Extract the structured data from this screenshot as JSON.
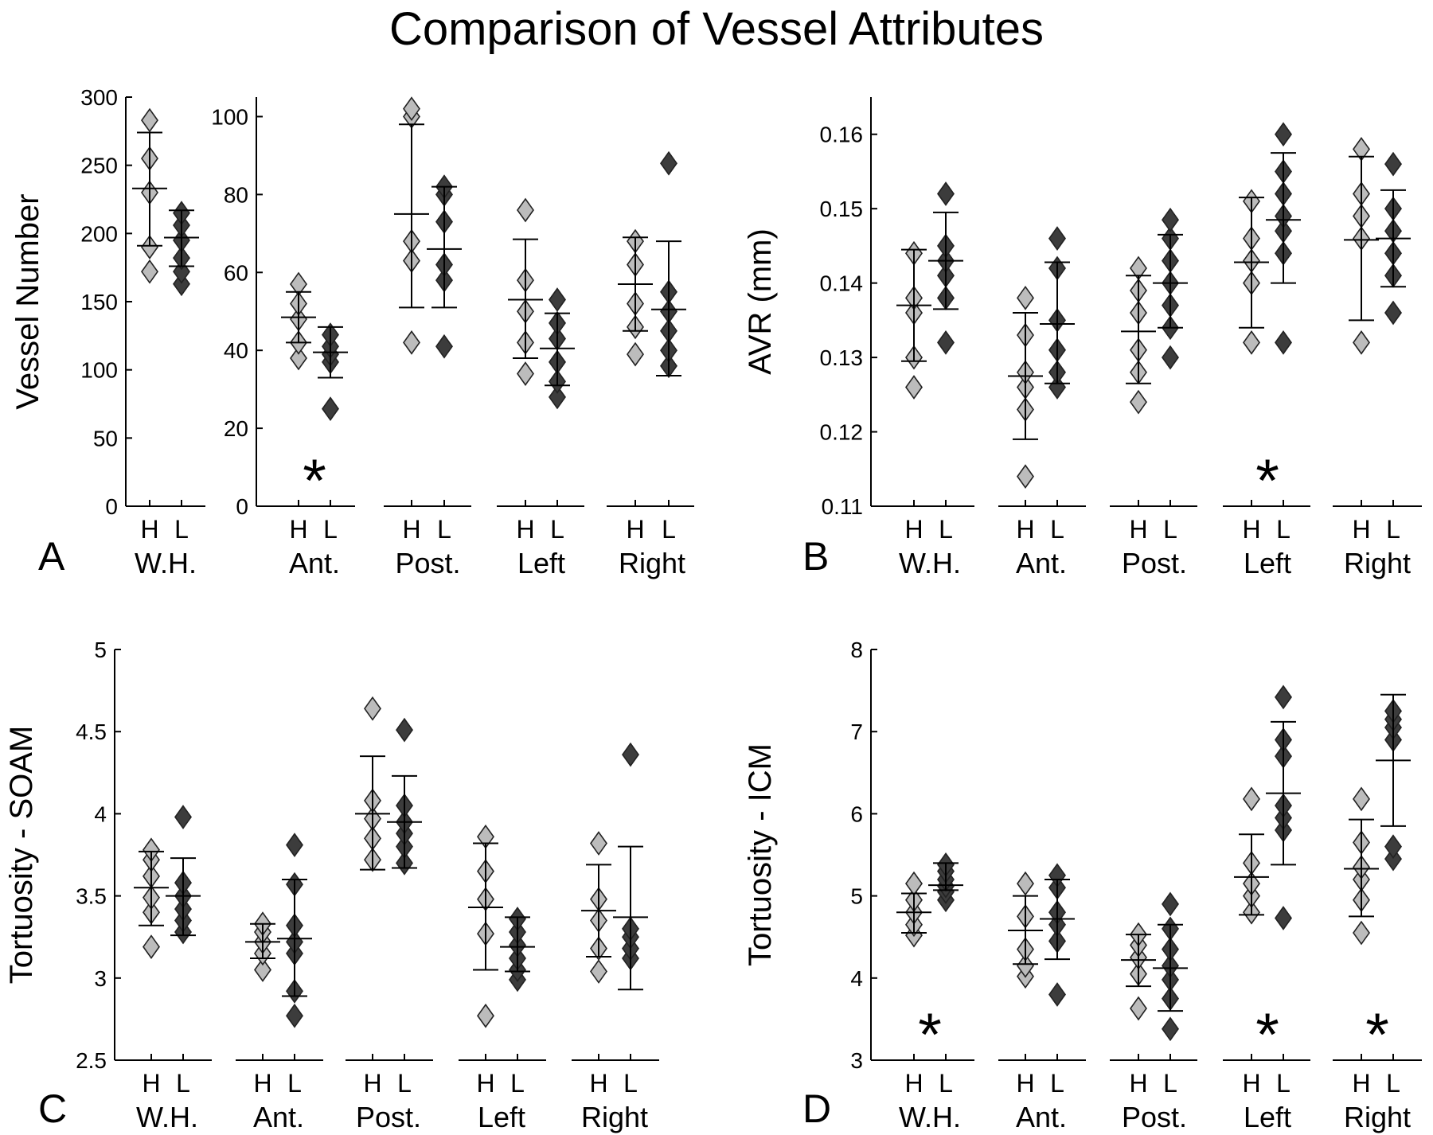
{
  "title": "Comparison of Vessel Attributes",
  "colors": {
    "H": "#bcbcbc",
    "L": "#3c3c3c",
    "marker_edge": "#222222",
    "axis": "#000000"
  },
  "chart_data": [
    {
      "panel": "A",
      "type": "scatter",
      "ylabel": "Vessel Number",
      "series": [
        {
          "name": "H"
        },
        {
          "name": "L"
        }
      ],
      "groups": [
        {
          "label": "W.H.",
          "hl": [
            "H",
            "L"
          ],
          "ylim": [
            0,
            300
          ],
          "yticks": [
            0,
            50,
            100,
            150,
            200,
            250,
            300
          ],
          "ytick_labels": [
            "0",
            "50",
            "100",
            "150",
            "200",
            "250",
            "300"
          ],
          "H": {
            "points": [
              172,
              190,
              230,
              255,
              283
            ],
            "mean": 233,
            "sd_low": 191,
            "sd_high": 274
          },
          "L": {
            "points": [
              163,
              172,
              182,
              195,
              206,
              215
            ],
            "mean": 197,
            "sd_low": 176,
            "sd_high": 217
          },
          "star": false
        },
        {
          "label": "Ant.",
          "hl": [
            "H",
            "L"
          ],
          "ylim": [
            0,
            105
          ],
          "yticks": [
            0,
            20,
            40,
            60,
            80,
            100
          ],
          "ytick_labels": [
            "0",
            "20",
            "40",
            "60",
            "80",
            "100"
          ],
          "H": {
            "points": [
              38,
              42,
              48,
              52,
              57
            ],
            "mean": 48.5,
            "sd_low": 42,
            "sd_high": 55
          },
          "L": {
            "points": [
              25,
              37,
              39,
              41,
              44
            ],
            "mean": 39.5,
            "sd_low": 33,
            "sd_high": 46
          },
          "star": true
        },
        {
          "label": "Post.",
          "hl": [
            "H",
            "L"
          ],
          "H": {
            "points": [
              42,
              63,
              68,
              100,
              102
            ],
            "mean": 75,
            "sd_low": 51,
            "sd_high": 98
          },
          "L": {
            "points": [
              41,
              58,
              62,
              73,
              80,
              82
            ],
            "mean": 66,
            "sd_low": 51,
            "sd_high": 82
          },
          "star": false
        },
        {
          "label": "Left",
          "hl": [
            "H",
            "L"
          ],
          "H": {
            "points": [
              34,
              42,
              50,
              58,
              76
            ],
            "mean": 53,
            "sd_low": 38,
            "sd_high": 68.5
          },
          "L": {
            "points": [
              28,
              32,
              37,
              43,
              47,
              53
            ],
            "mean": 40.5,
            "sd_low": 31,
            "sd_high": 49.5
          },
          "star": false
        },
        {
          "label": "Right",
          "hl": [
            "H",
            "L"
          ],
          "H": {
            "points": [
              39,
              46,
              52,
              62,
              68
            ],
            "mean": 57,
            "sd_low": 45,
            "sd_high": 69
          },
          "L": {
            "points": [
              36,
              40,
              45,
              50,
              55,
              88
            ],
            "mean": 50.5,
            "sd_low": 33.5,
            "sd_high": 68
          },
          "star": false
        }
      ]
    },
    {
      "panel": "B",
      "type": "scatter",
      "ylabel": "AVR (mm)",
      "ylim": [
        0.11,
        0.165
      ],
      "yticks": [
        0.11,
        0.12,
        0.13,
        0.14,
        0.15,
        0.16
      ],
      "ytick_labels": [
        "0.11",
        "0.12",
        "0.13",
        "0.14",
        "0.15",
        "0.16"
      ],
      "series": [
        {
          "name": "H"
        },
        {
          "name": "L"
        }
      ],
      "groups": [
        {
          "label": "W.H.",
          "hl": [
            "H",
            "L"
          ],
          "H": {
            "points": [
              0.126,
              0.13,
              0.136,
              0.138,
              0.144
            ],
            "mean": 0.137,
            "sd_low": 0.1295,
            "sd_high": 0.1445
          },
          "L": {
            "points": [
              0.132,
              0.138,
              0.141,
              0.143,
              0.145,
              0.152
            ],
            "mean": 0.143,
            "sd_low": 0.1365,
            "sd_high": 0.1495
          },
          "star": false
        },
        {
          "label": "Ant.",
          "hl": [
            "H",
            "L"
          ],
          "H": {
            "points": [
              0.114,
              0.123,
              0.126,
              0.128,
              0.133,
              0.138
            ],
            "mean": 0.1275,
            "sd_low": 0.119,
            "sd_high": 0.136
          },
          "L": {
            "points": [
              0.126,
              0.128,
              0.131,
              0.135,
              0.142,
              0.146
            ],
            "mean": 0.1345,
            "sd_low": 0.1265,
            "sd_high": 0.1428
          },
          "star": false
        },
        {
          "label": "Post.",
          "hl": [
            "H",
            "L"
          ],
          "H": {
            "points": [
              0.124,
              0.128,
              0.131,
              0.136,
              0.139,
              0.142
            ],
            "mean": 0.1335,
            "sd_low": 0.1265,
            "sd_high": 0.141
          },
          "L": {
            "points": [
              0.13,
              0.134,
              0.137,
              0.14,
              0.143,
              0.146,
              0.1485
            ],
            "mean": 0.14,
            "sd_low": 0.134,
            "sd_high": 0.1465
          },
          "star": false
        },
        {
          "label": "Left",
          "hl": [
            "H",
            "L"
          ],
          "H": {
            "points": [
              0.132,
              0.14,
              0.143,
              0.146,
              0.151
            ],
            "mean": 0.1428,
            "sd_low": 0.134,
            "sd_high": 0.1515
          },
          "L": {
            "points": [
              0.132,
              0.144,
              0.147,
              0.149,
              0.152,
              0.155,
              0.16
            ],
            "mean": 0.1485,
            "sd_low": 0.14,
            "sd_high": 0.1575
          },
          "star": true
        },
        {
          "label": "Right",
          "hl": [
            "H",
            "L"
          ],
          "H": {
            "points": [
              0.132,
              0.146,
              0.149,
              0.152,
              0.158
            ],
            "mean": 0.1458,
            "sd_low": 0.135,
            "sd_high": 0.157
          },
          "L": {
            "points": [
              0.136,
              0.141,
              0.144,
              0.147,
              0.15,
              0.156
            ],
            "mean": 0.146,
            "sd_low": 0.1395,
            "sd_high": 0.1525
          },
          "star": false
        }
      ]
    },
    {
      "panel": "C",
      "type": "scatter",
      "ylabel": "Tortuosity - SOAM",
      "ylim": [
        2.5,
        5
      ],
      "yticks": [
        2.5,
        3,
        3.5,
        4,
        4.5,
        5
      ],
      "ytick_labels": [
        "2.5",
        "3",
        "3.5",
        "4",
        "4.5",
        "5"
      ],
      "series": [
        {
          "name": "H"
        },
        {
          "name": "L"
        }
      ],
      "groups": [
        {
          "label": "W.H.",
          "hl": [
            "H",
            "L"
          ],
          "H": {
            "points": [
              3.19,
              3.4,
              3.49,
              3.62,
              3.72,
              3.78
            ],
            "mean": 3.55,
            "sd_low": 3.32,
            "sd_high": 3.77
          },
          "L": {
            "points": [
              3.28,
              3.35,
              3.42,
              3.5,
              3.58,
              3.98
            ],
            "mean": 3.5,
            "sd_low": 3.26,
            "sd_high": 3.73
          },
          "star": false
        },
        {
          "label": "Ant.",
          "hl": [
            "H",
            "L"
          ],
          "H": {
            "points": [
              3.05,
              3.15,
              3.22,
              3.28,
              3.33
            ],
            "mean": 3.22,
            "sd_low": 3.12,
            "sd_high": 3.33
          },
          "L": {
            "points": [
              2.77,
              2.92,
              3.15,
              3.22,
              3.32,
              3.57,
              3.81
            ],
            "mean": 3.24,
            "sd_low": 2.89,
            "sd_high": 3.6
          },
          "star": false
        },
        {
          "label": "Post.",
          "hl": [
            "H",
            "L"
          ],
          "H": {
            "points": [
              3.72,
              3.85,
              3.97,
              4.08,
              4.64
            ],
            "mean": 4.0,
            "sd_low": 3.66,
            "sd_high": 4.35
          },
          "L": {
            "points": [
              3.7,
              3.8,
              3.88,
              3.95,
              4.05,
              4.51
            ],
            "mean": 3.95,
            "sd_low": 3.67,
            "sd_high": 4.23
          },
          "star": false
        },
        {
          "label": "Left",
          "hl": [
            "H",
            "L"
          ],
          "H": {
            "points": [
              2.77,
              3.27,
              3.48,
              3.65,
              3.86
            ],
            "mean": 3.43,
            "sd_low": 3.05,
            "sd_high": 3.82
          },
          "L": {
            "points": [
              2.99,
              3.05,
              3.12,
              3.2,
              3.28,
              3.36
            ],
            "mean": 3.19,
            "sd_low": 3.04,
            "sd_high": 3.37
          },
          "star": false
        },
        {
          "label": "Right",
          "hl": [
            "H",
            "L"
          ],
          "H": {
            "points": [
              3.04,
              3.18,
              3.35,
              3.48,
              3.82
            ],
            "mean": 3.41,
            "sd_low": 3.13,
            "sd_high": 3.69
          },
          "L": {
            "points": [
              3.12,
              3.18,
              3.25,
              3.3,
              4.36
            ],
            "mean": 3.37,
            "sd_low": 2.93,
            "sd_high": 3.8
          },
          "star": false
        }
      ]
    },
    {
      "panel": "D",
      "type": "scatter",
      "ylabel": "Tortuosity - ICM",
      "ylim": [
        3,
        8
      ],
      "yticks": [
        3,
        4,
        5,
        6,
        7,
        8
      ],
      "ytick_labels": [
        "3",
        "4",
        "5",
        "6",
        "7",
        "8"
      ],
      "series": [
        {
          "name": "H"
        },
        {
          "name": "L"
        }
      ],
      "groups": [
        {
          "label": "W.H.",
          "hl": [
            "H",
            "L"
          ],
          "H": {
            "points": [
              4.52,
              4.65,
              4.8,
              4.95,
              5.15
            ],
            "mean": 4.8,
            "sd_low": 4.55,
            "sd_high": 5.03
          },
          "L": {
            "points": [
              4.95,
              5.05,
              5.12,
              5.2,
              5.3,
              5.38
            ],
            "mean": 5.13,
            "sd_low": 5.07,
            "sd_high": 5.4
          },
          "star": true
        },
        {
          "label": "Ant.",
          "hl": [
            "H",
            "L"
          ],
          "H": {
            "points": [
              4.02,
              4.15,
              4.35,
              4.75,
              5.15
            ],
            "mean": 4.58,
            "sd_low": 4.17,
            "sd_high": 5.0
          },
          "L": {
            "points": [
              3.8,
              4.45,
              4.65,
              4.8,
              5.1,
              5.25
            ],
            "mean": 4.72,
            "sd_low": 4.23,
            "sd_high": 5.2
          },
          "star": false
        },
        {
          "label": "Post.",
          "hl": [
            "H",
            "L"
          ],
          "H": {
            "points": [
              3.63,
              4.05,
              4.25,
              4.4,
              4.53
            ],
            "mean": 4.22,
            "sd_low": 3.9,
            "sd_high": 4.53
          },
          "L": {
            "points": [
              3.38,
              3.75,
              3.98,
              4.15,
              4.35,
              4.6,
              4.9
            ],
            "mean": 4.12,
            "sd_low": 3.6,
            "sd_high": 4.65
          },
          "star": false
        },
        {
          "label": "Left",
          "hl": [
            "H",
            "L"
          ],
          "H": {
            "points": [
              4.8,
              5.0,
              5.15,
              5.4,
              6.18
            ],
            "mean": 5.23,
            "sd_low": 4.77,
            "sd_high": 5.75
          },
          "L": {
            "points": [
              4.73,
              5.8,
              5.95,
              6.1,
              6.7,
              6.9,
              7.42
            ],
            "mean": 6.25,
            "sd_low": 5.38,
            "sd_high": 7.12
          },
          "star": true
        },
        {
          "label": "Right",
          "hl": [
            "H",
            "L"
          ],
          "H": {
            "points": [
              4.55,
              4.95,
              5.2,
              5.35,
              5.65,
              6.18
            ],
            "mean": 5.33,
            "sd_low": 4.75,
            "sd_high": 5.93
          },
          "L": {
            "points": [
              5.45,
              5.6,
              6.9,
              7.05,
              7.15,
              7.25
            ],
            "mean": 6.65,
            "sd_low": 5.85,
            "sd_high": 7.45
          },
          "star": true
        }
      ]
    }
  ]
}
